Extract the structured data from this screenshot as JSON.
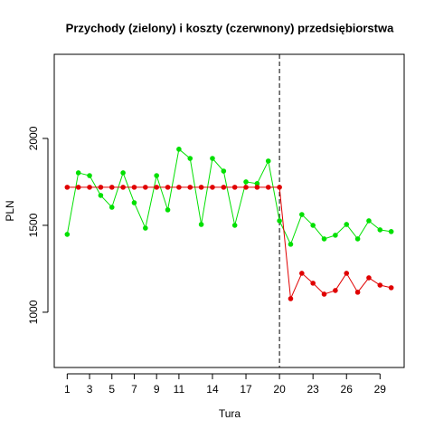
{
  "chart_data": {
    "type": "line",
    "title": "Przychody (zielony) i koszty (czerwnony) przedsiębiorstwa",
    "xlabel": "Tura",
    "ylabel": "PLN",
    "x": [
      1,
      2,
      3,
      4,
      5,
      6,
      7,
      8,
      9,
      10,
      11,
      12,
      13,
      14,
      15,
      16,
      17,
      18,
      19,
      20,
      21,
      22,
      23,
      24,
      25,
      26,
      27,
      28,
      29,
      30
    ],
    "series": [
      {
        "name": "Przychody",
        "color": "#00e000",
        "values": [
          1448,
          1802,
          1786,
          1672,
          1604,
          1802,
          1630,
          1484,
          1786,
          1589,
          1938,
          1885,
          1505,
          1885,
          1812,
          1500,
          1750,
          1740,
          1870,
          1526,
          1391,
          1562,
          1500,
          1422,
          1443,
          1505,
          1422,
          1526,
          1474,
          1464
        ]
      },
      {
        "name": "Koszty",
        "color": "#e00000",
        "values": [
          1719,
          1719,
          1719,
          1719,
          1719,
          1719,
          1719,
          1719,
          1719,
          1719,
          1719,
          1719,
          1719,
          1719,
          1719,
          1719,
          1719,
          1719,
          1719,
          1719,
          1078,
          1224,
          1167,
          1104,
          1125,
          1224,
          1115,
          1198,
          1156,
          1141
        ]
      }
    ],
    "vline": 20,
    "xlim": [
      -0.16,
      31.16
    ],
    "xticks": [
      1,
      3,
      5,
      7,
      9,
      11,
      14,
      17,
      20,
      23,
      26,
      29
    ],
    "ylim": [
      682,
      2484
    ],
    "yticks": [
      1000,
      1500,
      2000
    ]
  }
}
